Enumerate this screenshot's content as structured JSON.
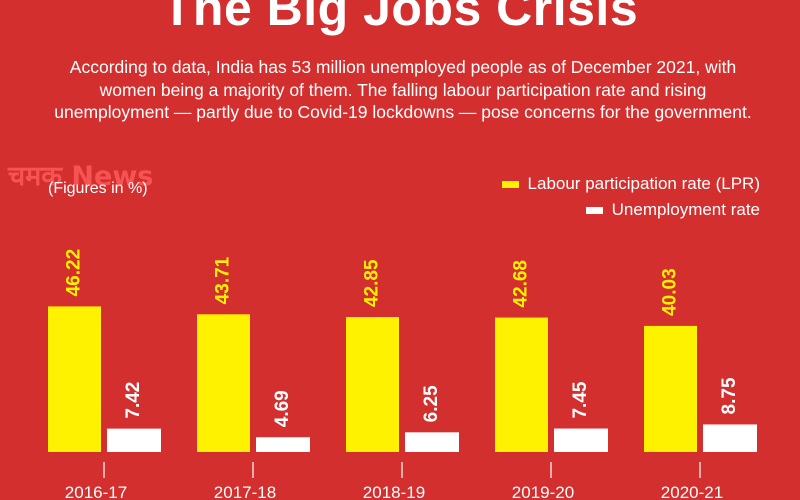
{
  "title": "The Big Jobs Crisis",
  "intro": "According to data, India has 53 million unemployed people as of December 2021, with women being a majority of them. The falling labour participation rate and rising unemployment — partly due to Covid-19 lockdowns — pose concerns for the government.",
  "watermark": "चमक News",
  "units_note": "(Figures in %)",
  "colors": {
    "background": "#d32f2f",
    "lpr": "#fff200",
    "unemployment": "#ffffff",
    "axis": "#ffffff"
  },
  "chart_data": {
    "type": "bar",
    "categories": [
      "2016-17",
      "2017-18",
      "2018-19",
      "2019-20",
      "2020-21"
    ],
    "series": [
      {
        "name": "Labour participation rate  (LPR)",
        "values": [
          46.22,
          43.71,
          42.85,
          42.68,
          40.03
        ],
        "color": "#fff200",
        "label_color": "#fff200"
      },
      {
        "name": "Unemployment rate",
        "values": [
          7.42,
          4.69,
          6.25,
          7.45,
          8.75
        ],
        "color": "#ffffff",
        "label_color": "#ffffff"
      }
    ],
    "value_labels": [
      [
        "46.22",
        "43.71",
        "42.85",
        "42.68",
        "40.03"
      ],
      [
        "7.42",
        "4.69",
        "6.25",
        "7.45",
        "8.75"
      ]
    ],
    "legend_position": "top-right",
    "grid": false
  }
}
